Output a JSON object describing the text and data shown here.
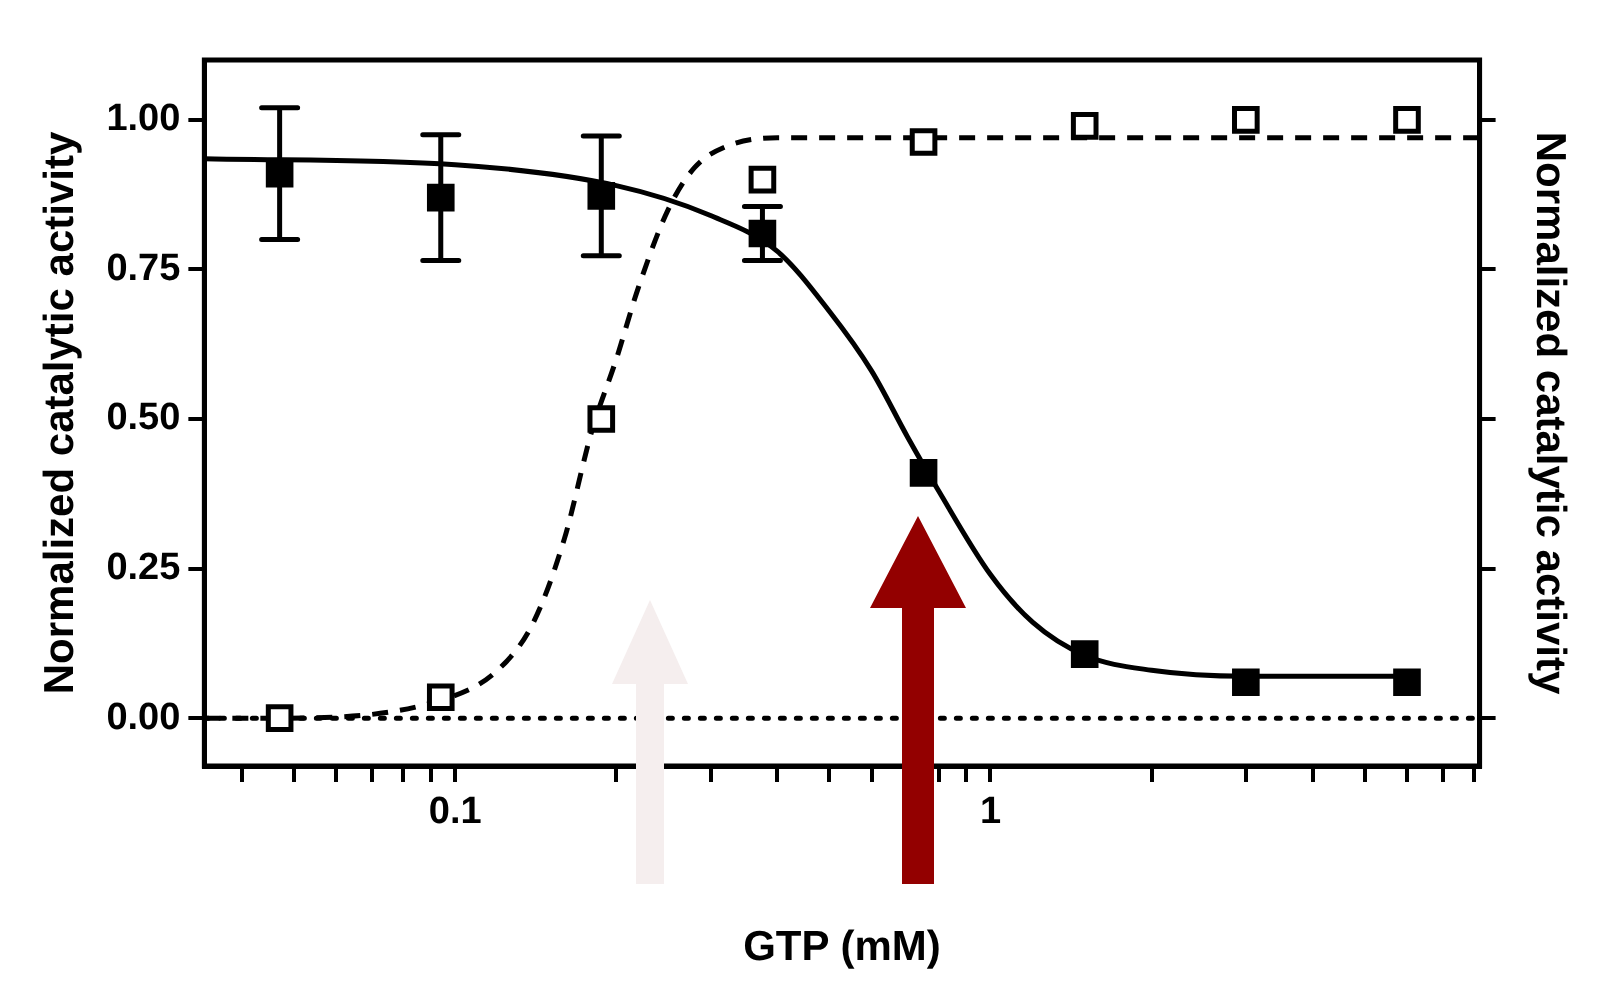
{
  "chart_data": {
    "type": "scatter",
    "xlabel": "GTP (mM)",
    "ylabel": "Normalized catalytic activity",
    "y2label": "Normalized catalytic activity",
    "log": "x",
    "grid": false,
    "legend": false,
    "marker": "square",
    "xlim": [
      0.034,
      8.2
    ],
    "xticks": [
      {
        "value": 0.04,
        "label": null
      },
      {
        "value": 0.05,
        "label": null
      },
      {
        "value": 0.06,
        "label": null
      },
      {
        "value": 0.07,
        "label": null
      },
      {
        "value": 0.08,
        "label": null
      },
      {
        "value": 0.09,
        "label": null
      },
      0.1,
      {
        "value": 0.2,
        "label": null
      },
      {
        "value": 0.3,
        "label": null
      },
      {
        "value": 0.4,
        "label": null
      },
      {
        "value": 0.5,
        "label": null
      },
      {
        "value": 0.6,
        "label": null
      },
      {
        "value": 0.7,
        "label": null
      },
      {
        "value": 0.8,
        "label": null
      },
      {
        "value": 0.9,
        "label": null
      },
      1,
      {
        "value": 2,
        "label": null
      },
      {
        "value": 3,
        "label": null
      },
      {
        "value": 4,
        "label": null
      },
      {
        "value": 5,
        "label": null
      },
      {
        "value": 6,
        "label": null
      },
      {
        "value": 7,
        "label": null
      },
      {
        "value": 8,
        "label": null
      }
    ],
    "ylim": [
      -0.08,
      1.1
    ],
    "yticks": [
      {
        "value": 0,
        "label": "0.00"
      },
      {
        "value": 0.25,
        "label": "0.25"
      },
      {
        "value": 0.5,
        "label": "0.50"
      },
      {
        "value": 0.75,
        "label": "0.75"
      },
      {
        "value": 1,
        "label": "1.00"
      }
    ],
    "ref_lines": [
      {
        "axis": "y",
        "value": 0,
        "line_style": "dotted",
        "color": "#000000"
      }
    ],
    "series": [
      {
        "color": "#000000",
        "x": [
          0.047,
          0.094,
          0.1875,
          0.375,
          0.75,
          1.5,
          3,
          6
        ],
        "values": [
          0.91,
          0.87,
          0.873,
          0.81,
          0.41,
          0.107,
          0.06,
          0.06
        ],
        "errors": [
          0.11,
          0.105,
          0.1,
          0.045,
          null,
          null,
          null,
          null
        ]
      },
      {
        "color": "#000000",
        "x": [
          0.047,
          0.094,
          0.1875,
          0.375,
          0.75,
          1.5,
          3,
          6
        ],
        "values": [
          0.0,
          0.035,
          0.5,
          0.9,
          0.963,
          0.99,
          1.0,
          1.0
        ]
      },
      {
        "type": "line",
        "color": "#000000",
        "marker": "none",
        "line_style": "solid",
        "x": [
          0.034,
          0.1,
          0.2,
          0.3,
          0.4,
          0.5,
          0.6,
          0.7,
          0.8,
          1,
          1.2,
          1.5,
          2,
          3,
          6
        ],
        "values": [
          0.935,
          0.925,
          0.89,
          0.84,
          0.78,
          0.68,
          0.58,
          0.47,
          0.38,
          0.24,
          0.16,
          0.105,
          0.08,
          0.07,
          0.07
        ]
      },
      {
        "type": "line",
        "color": "#000000",
        "marker": "none",
        "line_style": "dashed",
        "x": [
          0.034,
          0.047,
          0.094,
          0.12,
          0.14,
          0.16,
          0.18,
          0.2,
          0.22,
          0.25,
          0.28,
          0.32,
          0.4,
          1,
          8.2
        ],
        "values": [
          0.0,
          0.0,
          0.03,
          0.08,
          0.16,
          0.3,
          0.48,
          0.6,
          0.72,
          0.85,
          0.92,
          0.955,
          0.97,
          0.97,
          0.97
        ]
      }
    ]
  }
}
